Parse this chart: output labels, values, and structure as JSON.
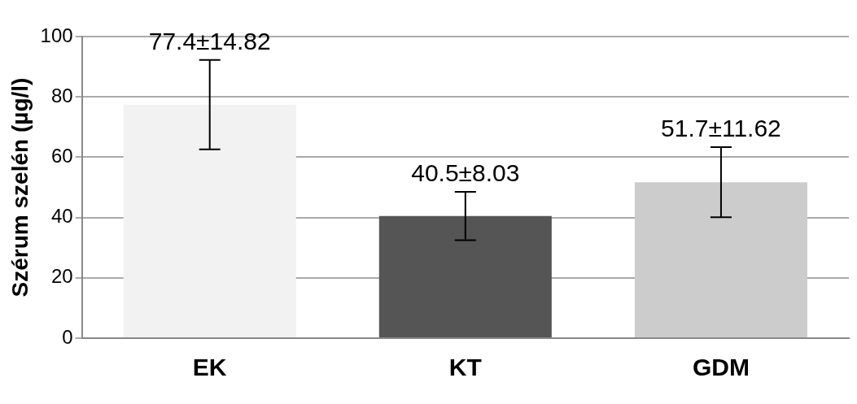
{
  "chart_data": {
    "type": "bar",
    "ylabel": "Szérum szelén (µg/l)",
    "categories": [
      "EK",
      "KT",
      "GDM"
    ],
    "values": [
      77.4,
      40.5,
      51.7
    ],
    "errors": [
      14.82,
      8.03,
      11.62
    ],
    "value_labels": [
      "77.4±14.82",
      "40.5±8.03",
      "51.7±11.62"
    ],
    "colors": [
      "#f2f2f2",
      "#555555",
      "#cccccc"
    ],
    "ylim": [
      0,
      100
    ],
    "yticks": [
      0,
      20,
      40,
      60,
      80,
      100
    ],
    "grid": "y",
    "legend": false
  }
}
